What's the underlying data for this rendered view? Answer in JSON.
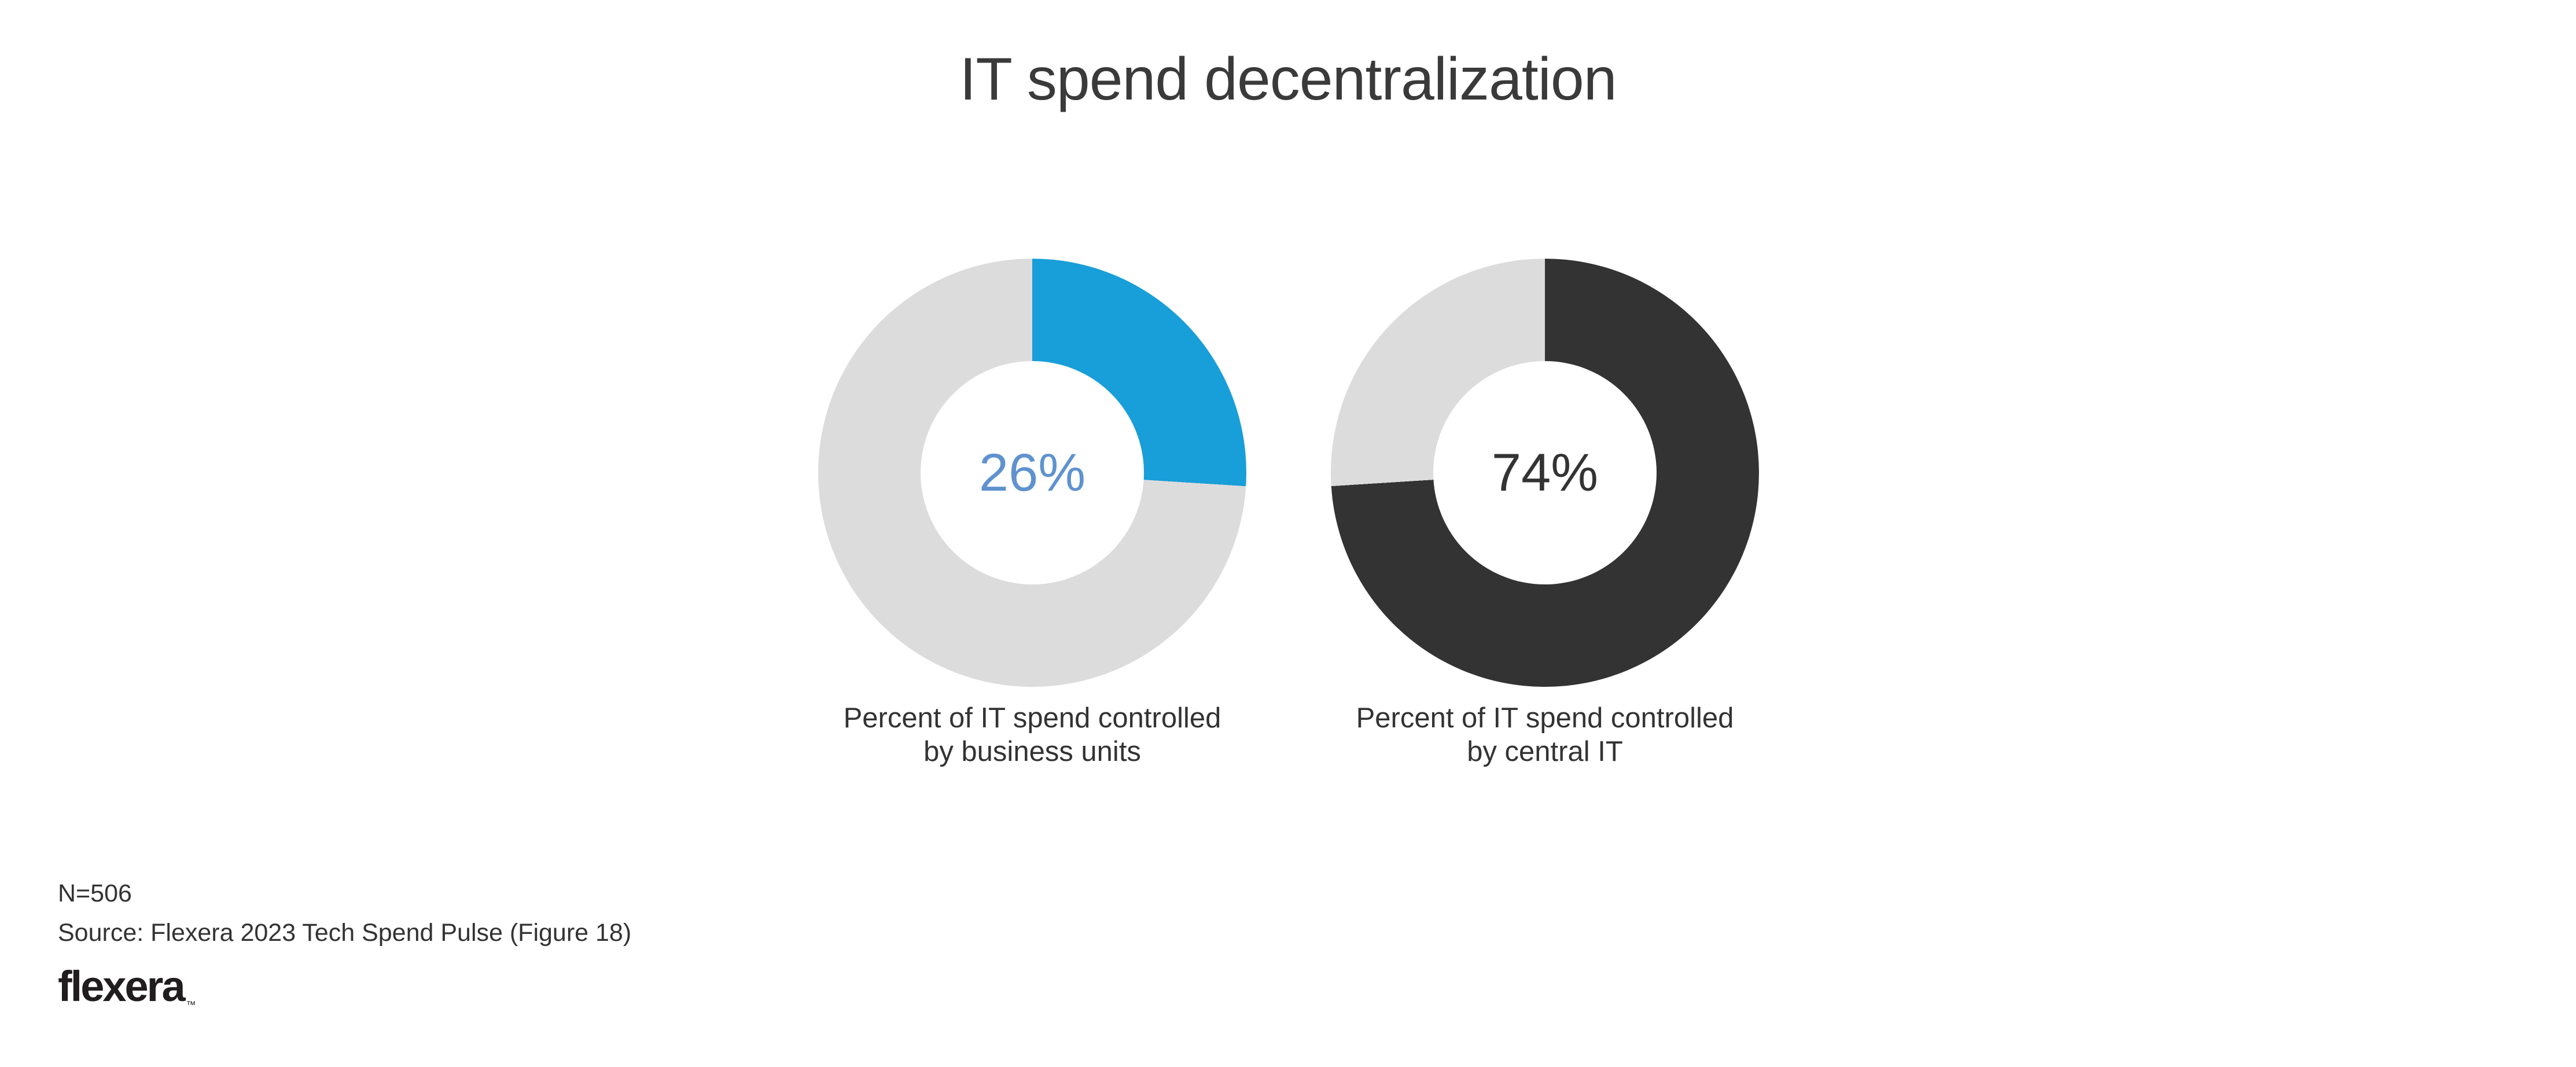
{
  "page_title": "IT spend decentralization",
  "charts": [
    {
      "percent": 26,
      "percent_label": "26%",
      "value_color": "#5F92CF",
      "slice_color": "#189ED8",
      "track_color": "#DCDCDC",
      "caption_line1": "Percent of IT spend controlled",
      "caption_line2": "by business units"
    },
    {
      "percent": 74,
      "percent_label": "74%",
      "value_color": "#333333",
      "slice_color": "#333333",
      "track_color": "#DCDCDC",
      "caption_line1": "Percent of IT spend controlled",
      "caption_line2": "by central IT"
    }
  ],
  "footer": {
    "sample_size": "N=506",
    "source": "Source: Flexera 2023 Tech Spend Pulse (Figure 18)",
    "logo_text": "flexera",
    "logo_trademark": "™"
  },
  "chart_data": [
    {
      "type": "pie",
      "subtype": "donut",
      "title": "IT spend decentralization",
      "caption": "Percent of IT spend controlled by business units",
      "center_label": "26%",
      "values": [
        {
          "name": "controlled by business units",
          "value": 26,
          "color": "#189ED8"
        },
        {
          "name": "remainder",
          "value": 74,
          "color": "#DCDCDC"
        }
      ],
      "start_angle_deg": 0,
      "clockwise": true,
      "legend": "none"
    },
    {
      "type": "pie",
      "subtype": "donut",
      "title": "IT spend decentralization",
      "caption": "Percent of IT spend controlled by central IT",
      "center_label": "74%",
      "values": [
        {
          "name": "controlled by central IT",
          "value": 74,
          "color": "#333333"
        },
        {
          "name": "remainder",
          "value": 26,
          "color": "#DCDCDC"
        }
      ],
      "start_angle_deg": 0,
      "clockwise": true,
      "legend": "none"
    }
  ]
}
